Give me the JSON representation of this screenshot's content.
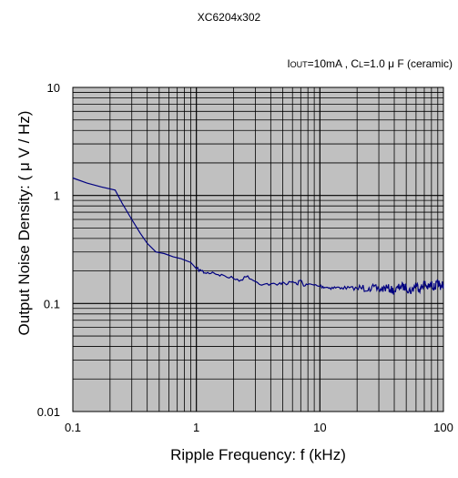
{
  "header": {
    "title": "XC6204x302",
    "subtitle_parts": [
      "I",
      "OUT",
      "=10mA , C",
      "L",
      "=1.0 μ F (ceramic)"
    ]
  },
  "chart_data": {
    "type": "line",
    "title": "XC6204x302",
    "subtitle": "IOUT=10mA , CL=1.0 μ F (ceramic)",
    "xlabel": "Ripple Frequency: f (kHz)",
    "ylabel": "Output Noise Density: ( μ V /      Hz)",
    "x_scale": "log",
    "y_scale": "log",
    "xlim": [
      0.1,
      100
    ],
    "ylim": [
      0.01,
      10
    ],
    "x_ticks": [
      "0.1",
      "1",
      "10",
      "100"
    ],
    "y_ticks": [
      "0.01",
      "0.1",
      "1",
      "10"
    ],
    "grid": true,
    "background": "#c0c0c0",
    "line_color": "#000080",
    "series": [
      {
        "x": [
          0.1,
          0.13,
          0.17,
          0.22,
          0.25,
          0.3,
          0.35,
          0.4,
          0.47,
          0.55,
          0.65,
          0.75,
          0.9,
          1.0,
          1.1,
          1.2,
          1.35,
          1.5,
          1.7,
          2.0,
          2.3,
          2.6,
          3.0,
          3.5,
          4.0,
          4.5,
          5.0,
          5.5,
          6.0,
          6.5,
          7.0,
          7.5,
          8.0,
          9.0,
          10,
          12,
          15,
          20,
          25,
          30,
          35,
          40,
          45,
          50,
          55,
          60,
          65,
          70,
          75,
          80,
          85,
          90,
          95,
          100
        ],
        "y": [
          1.45,
          1.3,
          1.2,
          1.12,
          0.85,
          0.6,
          0.45,
          0.36,
          0.3,
          0.29,
          0.27,
          0.26,
          0.24,
          0.21,
          0.2,
          0.19,
          0.195,
          0.185,
          0.18,
          0.17,
          0.165,
          0.18,
          0.16,
          0.15,
          0.152,
          0.148,
          0.158,
          0.152,
          0.16,
          0.15,
          0.165,
          0.145,
          0.15,
          0.148,
          0.145,
          0.14,
          0.14,
          0.138,
          0.14,
          0.135,
          0.14,
          0.13,
          0.145,
          0.14,
          0.13,
          0.15,
          0.135,
          0.155,
          0.14,
          0.15,
          0.14,
          0.155,
          0.145,
          0.15
        ]
      }
    ]
  }
}
